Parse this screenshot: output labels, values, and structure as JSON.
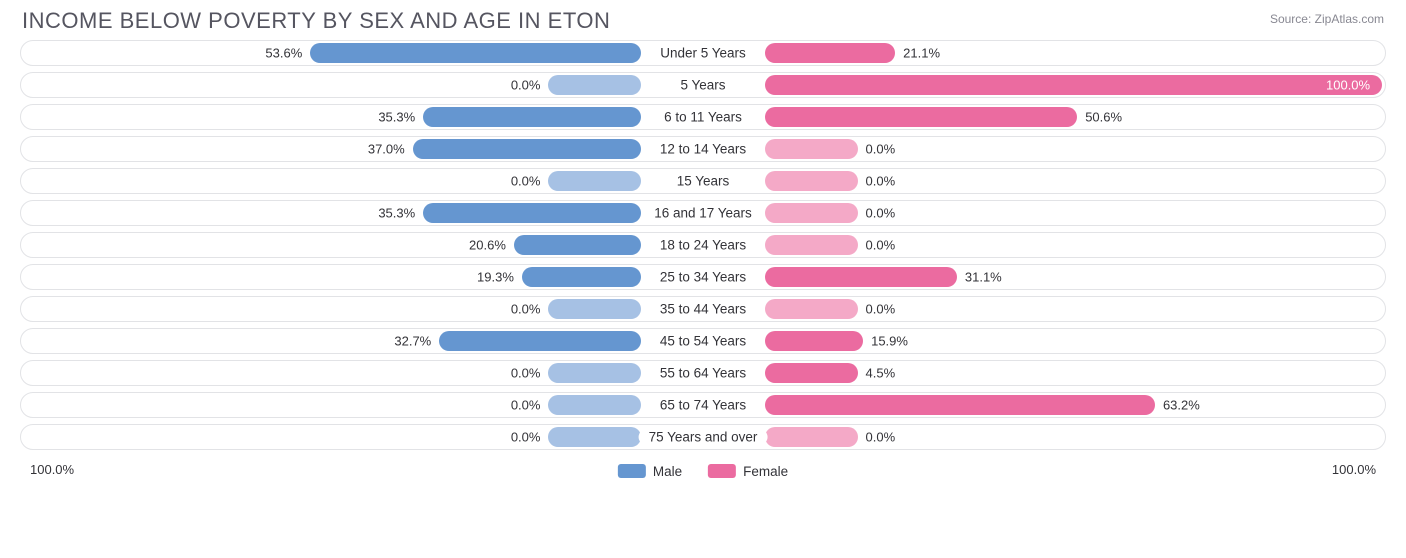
{
  "title": "INCOME BELOW POVERTY BY SEX AND AGE IN ETON",
  "source": "Source: ZipAtlas.com",
  "axis_left_label": "100.0%",
  "axis_right_label": "100.0%",
  "axis_max": 100.0,
  "legend": {
    "male": {
      "label": "Male",
      "color": "#6596d0"
    },
    "female": {
      "label": "Female",
      "color": "#eb6ba0"
    }
  },
  "colors": {
    "male_fill": "#6596d0",
    "male_fill_light": "#a6c1e4",
    "female_fill": "#eb6ba0",
    "female_fill_light": "#f4a9c7",
    "track_border": "#e2e3e6",
    "text": "#333338"
  },
  "min_bar_pct_visual": 15,
  "categories": [
    {
      "label": "Under 5 Years",
      "male": 53.6,
      "female": 21.1
    },
    {
      "label": "5 Years",
      "male": 0.0,
      "female": 100.0
    },
    {
      "label": "6 to 11 Years",
      "male": 35.3,
      "female": 50.6
    },
    {
      "label": "12 to 14 Years",
      "male": 37.0,
      "female": 0.0
    },
    {
      "label": "15 Years",
      "male": 0.0,
      "female": 0.0
    },
    {
      "label": "16 and 17 Years",
      "male": 35.3,
      "female": 0.0
    },
    {
      "label": "18 to 24 Years",
      "male": 20.6,
      "female": 0.0
    },
    {
      "label": "25 to 34 Years",
      "male": 19.3,
      "female": 31.1
    },
    {
      "label": "35 to 44 Years",
      "male": 0.0,
      "female": 0.0
    },
    {
      "label": "45 to 54 Years",
      "male": 32.7,
      "female": 15.9
    },
    {
      "label": "55 to 64 Years",
      "male": 0.0,
      "female": 4.5
    },
    {
      "label": "65 to 74 Years",
      "male": 0.0,
      "female": 63.2
    },
    {
      "label": "75 Years and over",
      "male": 0.0,
      "female": 0.0
    }
  ]
}
